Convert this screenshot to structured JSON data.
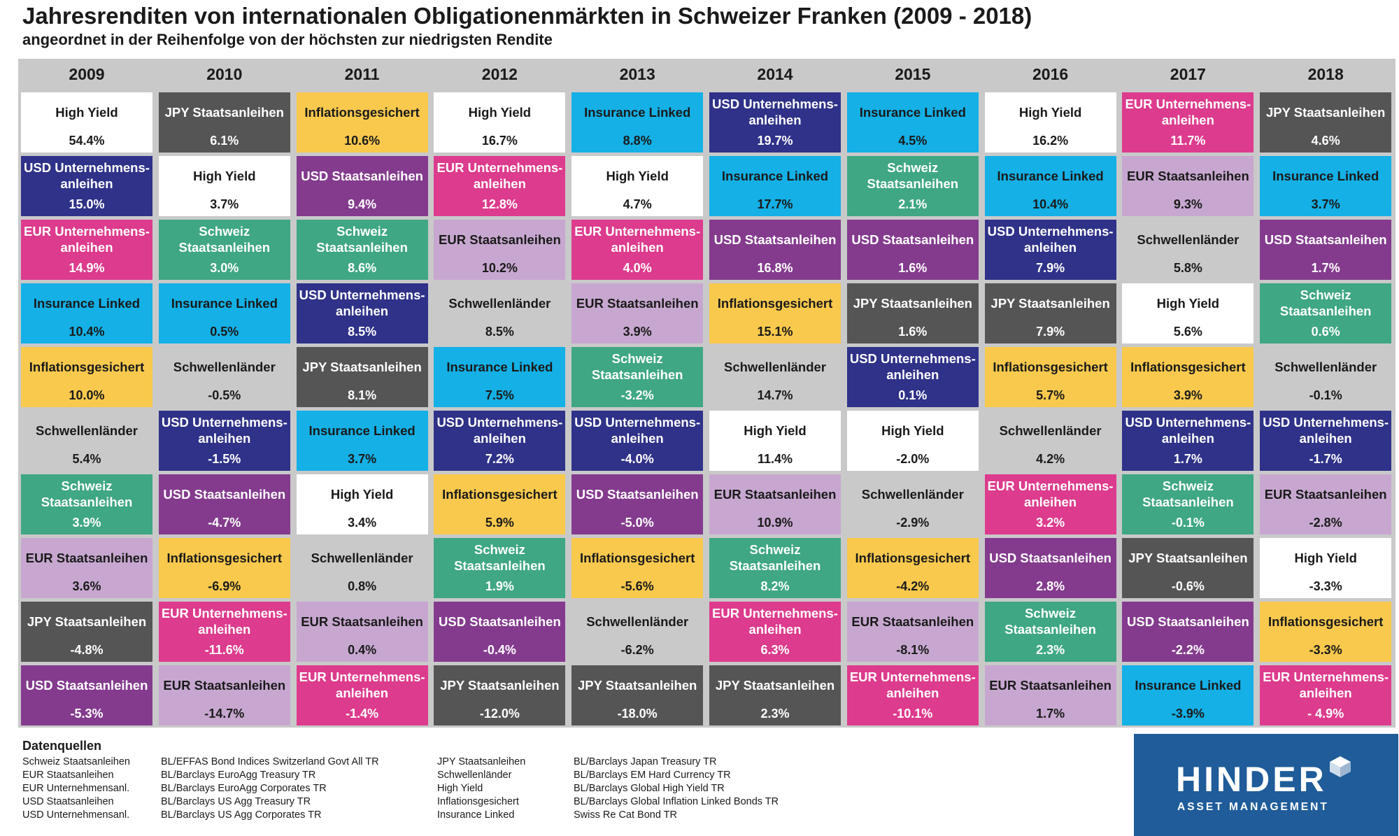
{
  "header": {
    "title": "Jahresrenditen von internationalen Obligationenmärkten in Schweizer Franken (2009 - 2018)",
    "subtitle": "angeordnet in der Reihenfolge von der höchsten zur niedrigsten Rendite"
  },
  "colors": {
    "High Yield": {
      "bg": "#ffffff",
      "fg": "#1a1a1a"
    },
    "JPY Staatsanleihen": {
      "bg": "#555555",
      "fg": "#ffffff"
    },
    "Inflationsgesichert": {
      "bg": "#f9c94d",
      "fg": "#1a1a1a"
    },
    "Insurance Linked": {
      "bg": "#14b0e6",
      "fg": "#1a1a1a"
    },
    "USD Unternehmens-anleihen": {
      "bg": "#2f3288",
      "fg": "#ffffff"
    },
    "EUR Unternehmens-anleihen": {
      "bg": "#dd3b8d",
      "fg": "#ffffff"
    },
    "USD Staatsanleihen": {
      "bg": "#843b8e",
      "fg": "#ffffff"
    },
    "Schweiz Staatsanleihen": {
      "bg": "#3fa783",
      "fg": "#ffffff"
    },
    "EUR Staatsanleihen": {
      "bg": "#c7a7d0",
      "fg": "#1a1a1a"
    },
    "Schwellenländer": {
      "bg": "#c9c9ca",
      "fg": "#1a1a1a"
    }
  },
  "chart_data": {
    "type": "table",
    "title": "Jahresrenditen von internationalen Obligationenmärkten in Schweizer Franken (2009 - 2018)",
    "subtitle": "angeordnet in der Reihenfolge von der höchsten zur niedrigsten Rendite",
    "years": [
      "2009",
      "2010",
      "2011",
      "2012",
      "2013",
      "2014",
      "2015",
      "2016",
      "2017",
      "2018"
    ],
    "columns": [
      [
        {
          "name": "High Yield",
          "value": "54.4%"
        },
        {
          "name": "USD Unternehmens-anleihen",
          "value": "15.0%"
        },
        {
          "name": "EUR Unternehmens-anleihen",
          "value": "14.9%"
        },
        {
          "name": "Insurance Linked",
          "value": "10.4%"
        },
        {
          "name": "Inflationsgesichert",
          "value": "10.0%"
        },
        {
          "name": "Schwellenländer",
          "value": "5.4%"
        },
        {
          "name": "Schweiz Staatsanleihen",
          "value": "3.9%"
        },
        {
          "name": "EUR Staatsanleihen",
          "value": "3.6%"
        },
        {
          "name": "JPY Staatsanleihen",
          "value": "-4.8%"
        },
        {
          "name": "USD Staatsanleihen",
          "value": "-5.3%"
        }
      ],
      [
        {
          "name": "JPY Staatsanleihen",
          "value": "6.1%"
        },
        {
          "name": "High Yield",
          "value": "3.7%"
        },
        {
          "name": "Schweiz Staatsanleihen",
          "value": "3.0%"
        },
        {
          "name": "Insurance Linked",
          "value": "0.5%"
        },
        {
          "name": "Schwellenländer",
          "value": "-0.5%"
        },
        {
          "name": "USD Unternehmens-anleihen",
          "value": "-1.5%"
        },
        {
          "name": "USD Staatsanleihen",
          "value": "-4.7%"
        },
        {
          "name": "Inflationsgesichert",
          "value": "-6.9%"
        },
        {
          "name": "EUR Unternehmens-anleihen",
          "value": "-11.6%"
        },
        {
          "name": "EUR Staatsanleihen",
          "value": "-14.7%"
        }
      ],
      [
        {
          "name": "Inflationsgesichert",
          "value": "10.6%"
        },
        {
          "name": "USD Staatsanleihen",
          "value": "9.4%"
        },
        {
          "name": "Schweiz Staatsanleihen",
          "value": "8.6%"
        },
        {
          "name": "USD Unternehmens-anleihen",
          "value": "8.5%"
        },
        {
          "name": "JPY Staatsanleihen",
          "value": "8.1%"
        },
        {
          "name": "Insurance Linked",
          "value": "3.7%"
        },
        {
          "name": "High Yield",
          "value": "3.4%"
        },
        {
          "name": "Schwellenländer",
          "value": "0.8%"
        },
        {
          "name": "EUR Staatsanleihen",
          "value": "0.4%"
        },
        {
          "name": "EUR Unternehmens-anleihen",
          "value": "-1.4%"
        }
      ],
      [
        {
          "name": "High Yield",
          "value": "16.7%"
        },
        {
          "name": "EUR Unternehmens-anleihen",
          "value": "12.8%"
        },
        {
          "name": "EUR Staatsanleihen",
          "value": "10.2%"
        },
        {
          "name": "Schwellenländer",
          "value": "8.5%"
        },
        {
          "name": "Insurance Linked",
          "value": "7.5%"
        },
        {
          "name": "USD Unternehmens-anleihen",
          "value": "7.2%"
        },
        {
          "name": "Inflationsgesichert",
          "value": "5.9%"
        },
        {
          "name": "Schweiz Staatsanleihen",
          "value": "1.9%"
        },
        {
          "name": "USD Staatsanleihen",
          "value": "-0.4%"
        },
        {
          "name": "JPY Staatsanleihen",
          "value": "-12.0%"
        }
      ],
      [
        {
          "name": "Insurance Linked",
          "value": "8.8%"
        },
        {
          "name": "High Yield",
          "value": "4.7%"
        },
        {
          "name": "EUR Unternehmens-anleihen",
          "value": "4.0%"
        },
        {
          "name": "EUR Staatsanleihen",
          "value": "3.9%"
        },
        {
          "name": "Schweiz Staatsanleihen",
          "value": "-3.2%"
        },
        {
          "name": "USD Unternehmens-anleihen",
          "value": "-4.0%"
        },
        {
          "name": "USD Staatsanleihen",
          "value": "-5.0%"
        },
        {
          "name": "Inflationsgesichert",
          "value": "-5.6%"
        },
        {
          "name": "Schwellenländer",
          "value": "-6.2%"
        },
        {
          "name": "JPY Staatsanleihen",
          "value": "-18.0%"
        }
      ],
      [
        {
          "name": "USD Unternehmens-anleihen",
          "value": "19.7%"
        },
        {
          "name": "Insurance Linked",
          "value": "17.7%"
        },
        {
          "name": "USD Staatsanleihen",
          "value": "16.8%"
        },
        {
          "name": "Inflationsgesichert",
          "value": "15.1%"
        },
        {
          "name": "Schwellenländer",
          "value": "14.7%"
        },
        {
          "name": "High Yield",
          "value": "11.4%"
        },
        {
          "name": "EUR Staatsanleihen",
          "value": "10.9%"
        },
        {
          "name": "Schweiz Staatsanleihen",
          "value": "8.2%"
        },
        {
          "name": "EUR Unternehmens-anleihen",
          "value": "6.3%"
        },
        {
          "name": "JPY Staatsanleihen",
          "value": "2.3%"
        }
      ],
      [
        {
          "name": "Insurance Linked",
          "value": "4.5%"
        },
        {
          "name": "Schweiz Staatsanleihen",
          "value": "2.1%"
        },
        {
          "name": "USD Staatsanleihen",
          "value": "1.6%"
        },
        {
          "name": "JPY Staatsanleihen",
          "value": "1.6%"
        },
        {
          "name": "USD Unternehmens-anleihen",
          "value": "0.1%"
        },
        {
          "name": "High Yield",
          "value": "-2.0%"
        },
        {
          "name": "Schwellenländer",
          "value": "-2.9%"
        },
        {
          "name": "Inflationsgesichert",
          "value": "-4.2%"
        },
        {
          "name": "EUR Staatsanleihen",
          "value": "-8.1%"
        },
        {
          "name": "EUR Unternehmens-anleihen",
          "value": "-10.1%"
        }
      ],
      [
        {
          "name": "High Yield",
          "value": "16.2%"
        },
        {
          "name": "Insurance Linked",
          "value": "10.4%"
        },
        {
          "name": "USD Unternehmens-anleihen",
          "value": "7.9%"
        },
        {
          "name": "JPY Staatsanleihen",
          "value": "7.9%"
        },
        {
          "name": "Inflationsgesichert",
          "value": "5.7%"
        },
        {
          "name": "Schwellenländer",
          "value": "4.2%"
        },
        {
          "name": "EUR Unternehmens-anleihen",
          "value": "3.2%"
        },
        {
          "name": "USD Staatsanleihen",
          "value": "2.8%"
        },
        {
          "name": "Schweiz Staatsanleihen",
          "value": "2.3%"
        },
        {
          "name": "EUR Staatsanleihen",
          "value": "1.7%"
        }
      ],
      [
        {
          "name": "EUR Unternehmens-anleihen",
          "value": "11.7%"
        },
        {
          "name": "EUR Staatsanleihen",
          "value": "9.3%"
        },
        {
          "name": "Schwellenländer",
          "value": "5.8%"
        },
        {
          "name": "High Yield",
          "value": "5.6%"
        },
        {
          "name": "Inflationsgesichert",
          "value": "3.9%"
        },
        {
          "name": "USD Unternehmens-anleihen",
          "value": "1.7%"
        },
        {
          "name": "Schweiz Staatsanleihen",
          "value": "-0.1%"
        },
        {
          "name": "JPY Staatsanleihen",
          "value": "-0.6%"
        },
        {
          "name": "USD Staatsanleihen",
          "value": "-2.2%"
        },
        {
          "name": "Insurance Linked",
          "value": "-3.9%"
        }
      ],
      [
        {
          "name": "JPY Staatsanleihen",
          "value": "4.6%"
        },
        {
          "name": "Insurance Linked",
          "value": "3.7%"
        },
        {
          "name": "USD Staatsanleihen",
          "value": "1.7%"
        },
        {
          "name": "Schweiz Staatsanleihen",
          "value": "0.6%"
        },
        {
          "name": "Schwellenländer",
          "value": "-0.1%"
        },
        {
          "name": "USD Unternehmens-anleihen",
          "value": "-1.7%"
        },
        {
          "name": "EUR Staatsanleihen",
          "value": "-2.8%"
        },
        {
          "name": "High Yield",
          "value": "-3.3%"
        },
        {
          "name": "Inflationsgesichert",
          "value": "-3.3%"
        },
        {
          "name": "EUR Unternehmens-anleihen",
          "value": "- 4.9%"
        }
      ]
    ]
  },
  "sources": {
    "title": "Datenquellen",
    "left": [
      {
        "name": "Schweiz Staatsanleihen",
        "source": "BL/EFFAS Bond Indices Switzerland Govt All TR"
      },
      {
        "name": "EUR Staatsanleihen",
        "source": "BL/Barclays EuroAgg Treasury TR"
      },
      {
        "name": "EUR Unternehmensanl.",
        "source": "BL/Barclays EuroAgg Corporates TR"
      },
      {
        "name": "USD Staatsanleihen",
        "source": "BL/Barclays US Agg Treasury TR"
      },
      {
        "name": "USD Unternehmensanl.",
        "source": "BL/Barclays US Agg Corporates TR"
      }
    ],
    "right": [
      {
        "name": "JPY Staatsanleihen",
        "source": "BL/Barclays Japan Treasury TR"
      },
      {
        "name": "Schwellenländer",
        "source": "BL/Barclays EM Hard Currency TR"
      },
      {
        "name": "High Yield",
        "source": "BL/Barclays Global High Yield TR"
      },
      {
        "name": "Inflationsgesichert",
        "source": "BL/Barclays Global Inflation Linked Bonds TR"
      },
      {
        "name": "Insurance Linked",
        "source": "Swiss Re Cat Bond TR"
      }
    ]
  },
  "logo": {
    "word": "HINDER",
    "sub": "ASSET MANAGEMENT"
  }
}
